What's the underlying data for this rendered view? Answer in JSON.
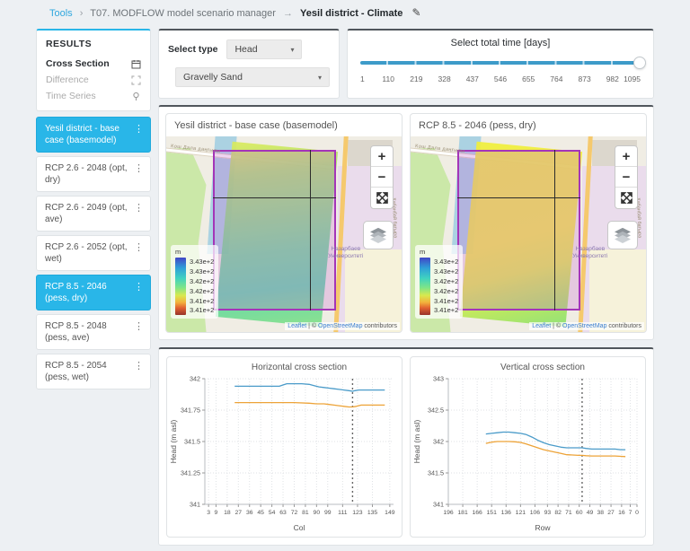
{
  "breadcrumb": {
    "tools": "Tools",
    "sep1": "›",
    "manager": "T07. MODFLOW model scenario manager",
    "sep2": "→",
    "current": "Yesil district - Climate"
  },
  "icons": {
    "pencil": "✎",
    "kebab": "⋮",
    "caret": "▾"
  },
  "colors": {
    "accent_blue": "#29b6e8",
    "slider_blue": "#3d9bc9",
    "line_blue": "#4a9bc9",
    "line_orange": "#eda338"
  },
  "sidebar": {
    "results_title": "RESULTS",
    "nav": [
      {
        "label": "Cross Section",
        "icon": "calendar-icon",
        "active": true
      },
      {
        "label": "Difference",
        "icon": "expand-icon",
        "active": false
      },
      {
        "label": "Time Series",
        "icon": "pin-icon",
        "active": false
      }
    ],
    "scenarios": [
      {
        "label": "Yesil district - base case (basemodel)",
        "selected": true
      },
      {
        "label": "RCP 2.6 - 2048 (opt, dry)",
        "selected": false
      },
      {
        "label": "RCP 2.6 - 2049 (opt, ave)",
        "selected": false
      },
      {
        "label": "RCP 2.6 - 2052 (opt, wet)",
        "selected": false
      },
      {
        "label": "RCP 8.5 - 2046 (pess, dry)",
        "selected": true
      },
      {
        "label": "RCP 8.5 - 2048 (pess, ave)",
        "selected": false
      },
      {
        "label": "RCP 8.5 - 2054 (pess, wet)",
        "selected": false
      }
    ]
  },
  "controls": {
    "select_type_label": "Select type",
    "type_value": "Head",
    "layer_value": "Gravelly Sand"
  },
  "time_slider": {
    "title": "Select total time [days]",
    "ticks": [
      "1",
      "110",
      "219",
      "328",
      "437",
      "546",
      "655",
      "764",
      "873",
      "982",
      "1095"
    ],
    "value": "1095"
  },
  "map_common": {
    "legend_unit": "m",
    "legend_labels": [
      "3.43e+2",
      "3.43e+2",
      "3.42e+2",
      "3.42e+2",
      "3.41e+2",
      "3.41e+2"
    ],
    "zoom_in": "+",
    "zoom_out": "−",
    "attribution": {
      "leaflet": "Leaflet",
      "sep": " | © ",
      "osm": "OpenStreetMap",
      "suffix": " contributors"
    },
    "place_label": "Назарбаев Университеті",
    "street_top": "Кош Дала даңғылы",
    "street_right": "Кабанбай батыра"
  },
  "maps": [
    {
      "title": "Yesil district - base case (basemodel)"
    },
    {
      "title": "RCP 8.5 - 2046 (pess, dry)"
    }
  ],
  "chart_data": [
    {
      "type": "line",
      "title": "Horizontal cross section",
      "xlabel": "Col",
      "ylabel": "Head (m asl)",
      "xlim": [
        0,
        152
      ],
      "ylim": [
        341,
        342
      ],
      "xticks": [
        3,
        9,
        18,
        27,
        36,
        45,
        54,
        63,
        72,
        81,
        90,
        99,
        111,
        123,
        135,
        149
      ],
      "yticks": [
        "341",
        "341.25",
        "341.5",
        "341.75",
        "342"
      ],
      "grid": true,
      "vline": 119,
      "legend_position": "none",
      "series": [
        {
          "name": "Yesil district - base case (basemodel)",
          "color": "#4a9bc9",
          "x": [
            24,
            36,
            48,
            60,
            63,
            66,
            78,
            84,
            88,
            92,
            96,
            100,
            104,
            108,
            112,
            116,
            119,
            121,
            124,
            130,
            138,
            145
          ],
          "y": [
            341.94,
            341.94,
            341.94,
            341.94,
            341.95,
            341.96,
            341.96,
            341.955,
            341.945,
            341.935,
            341.93,
            341.925,
            341.92,
            341.915,
            341.91,
            341.905,
            341.9,
            341.905,
            341.91,
            341.91,
            341.91,
            341.91
          ]
        },
        {
          "name": "RCP 8.5 - 2046 (pess, dry)",
          "color": "#eda338",
          "x": [
            24,
            36,
            48,
            60,
            72,
            84,
            90,
            96,
            100,
            104,
            108,
            112,
            116,
            119,
            122,
            126,
            132,
            138,
            145
          ],
          "y": [
            341.81,
            341.81,
            341.81,
            341.81,
            341.81,
            341.805,
            341.8,
            341.8,
            341.795,
            341.79,
            341.785,
            341.78,
            341.775,
            341.775,
            341.78,
            341.79,
            341.79,
            341.79,
            341.79
          ]
        }
      ]
    },
    {
      "type": "line",
      "title": "Vertical cross section",
      "xlabel": "Row",
      "ylabel": "Head (m asl)",
      "xlim": [
        196,
        0
      ],
      "ylim": [
        341,
        343
      ],
      "xticks": [
        196,
        181,
        166,
        151,
        136,
        121,
        106,
        93,
        82,
        71,
        60,
        49,
        38,
        27,
        16,
        7,
        0
      ],
      "yticks": [
        "341",
        "341.5",
        "342",
        "342.5",
        "343"
      ],
      "grid": true,
      "vline": 57,
      "legend_position": "none",
      "series": [
        {
          "name": "Yesil district - base case (basemodel)",
          "color": "#4a9bc9",
          "x": [
            157,
            151,
            145,
            139,
            133,
            127,
            121,
            115,
            109,
            103,
            97,
            91,
            85,
            79,
            73,
            67,
            61,
            57,
            53,
            47,
            41,
            35,
            29,
            23,
            17,
            12
          ],
          "y": [
            342.12,
            342.13,
            342.14,
            342.15,
            342.15,
            342.14,
            342.13,
            342.11,
            342.07,
            342.02,
            341.98,
            341.95,
            341.93,
            341.91,
            341.9,
            341.9,
            341.9,
            341.9,
            341.89,
            341.88,
            341.88,
            341.88,
            341.88,
            341.88,
            341.87,
            341.87
          ]
        },
        {
          "name": "RCP 8.5 - 2046 (pess, dry)",
          "color": "#eda338",
          "x": [
            157,
            151,
            145,
            139,
            133,
            127,
            121,
            115,
            109,
            103,
            97,
            91,
            85,
            79,
            73,
            67,
            61,
            57,
            53,
            47,
            41,
            35,
            29,
            23,
            17,
            12
          ],
          "y": [
            341.97,
            341.99,
            342.0,
            342.0,
            342.0,
            341.995,
            341.985,
            341.96,
            341.93,
            341.9,
            341.87,
            341.85,
            341.83,
            341.81,
            341.79,
            341.785,
            341.78,
            341.78,
            341.775,
            341.77,
            341.77,
            341.77,
            341.77,
            341.77,
            341.765,
            341.76
          ]
        }
      ]
    }
  ]
}
